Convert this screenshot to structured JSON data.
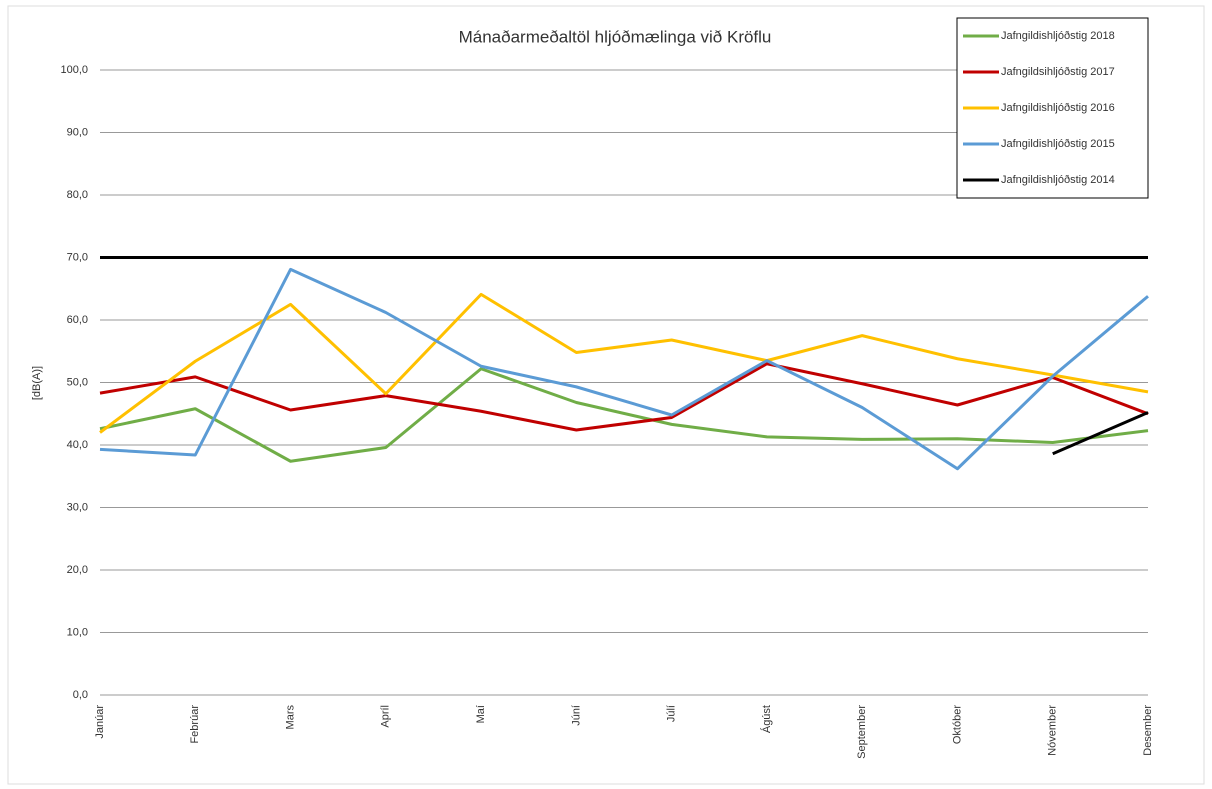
{
  "chart_data": {
    "type": "line",
    "title": "Mánaðarmeðaltöl hljóðmælinga við Kröflu",
    "y_label": "[dB(A)]",
    "categories": [
      "Janúar",
      "Febrúar",
      "Mars",
      "Apríl",
      "Maí",
      "Júní",
      "Júlí",
      "Ágúst",
      "September",
      "Október",
      "Nóvember",
      "Desember"
    ],
    "series": [
      {
        "name": "Jafngildishljóðstig 2018",
        "color": "#70ad47",
        "values": [
          42.6,
          45.8,
          37.4,
          39.6,
          52.2,
          46.8,
          43.3,
          41.3,
          40.9,
          41.0,
          40.4,
          42.3
        ]
      },
      {
        "name": "Jafngildsihljóðstig 2017",
        "color": "#c00000",
        "values": [
          48.3,
          50.9,
          45.6,
          47.9,
          45.4,
          42.4,
          44.4,
          53.0,
          49.8,
          46.4,
          50.8,
          45.0
        ]
      },
      {
        "name": "Jafngildishljóðstig 2016",
        "color": "#ffc000",
        "values": [
          42.0,
          53.4,
          62.5,
          48.2,
          64.1,
          54.8,
          56.8,
          53.5,
          57.5,
          53.8,
          51.2,
          48.5
        ]
      },
      {
        "name": "Jafngildishljóðstig 2015",
        "color": "#5b9bd5",
        "values": [
          39.3,
          38.4,
          68.1,
          61.2,
          52.6,
          49.3,
          44.8,
          53.5,
          46.0,
          36.2,
          51.0,
          63.8
        ]
      },
      {
        "name": "Jafngildishljóðstig 2014",
        "color": "#000000",
        "values": [
          null,
          null,
          null,
          null,
          null,
          null,
          null,
          null,
          null,
          null,
          38.6,
          45.2
        ]
      }
    ],
    "reference_line": {
      "value": 70,
      "color": "#000000"
    },
    "ylim": [
      0,
      100
    ],
    "yticks": [
      {
        "value": 0,
        "label": "0,0"
      },
      {
        "value": 10,
        "label": "10,0"
      },
      {
        "value": 20,
        "label": "20,0"
      },
      {
        "value": 30,
        "label": "30,0"
      },
      {
        "value": 40,
        "label": "40,0"
      },
      {
        "value": 50,
        "label": "50,0"
      },
      {
        "value": 60,
        "label": "60,0"
      },
      {
        "value": 70,
        "label": "70,0"
      },
      {
        "value": 80,
        "label": "80,0"
      },
      {
        "value": 90,
        "label": "90,0"
      },
      {
        "value": 100,
        "label": "100,0"
      }
    ],
    "grid": true,
    "legend": "top-right"
  }
}
